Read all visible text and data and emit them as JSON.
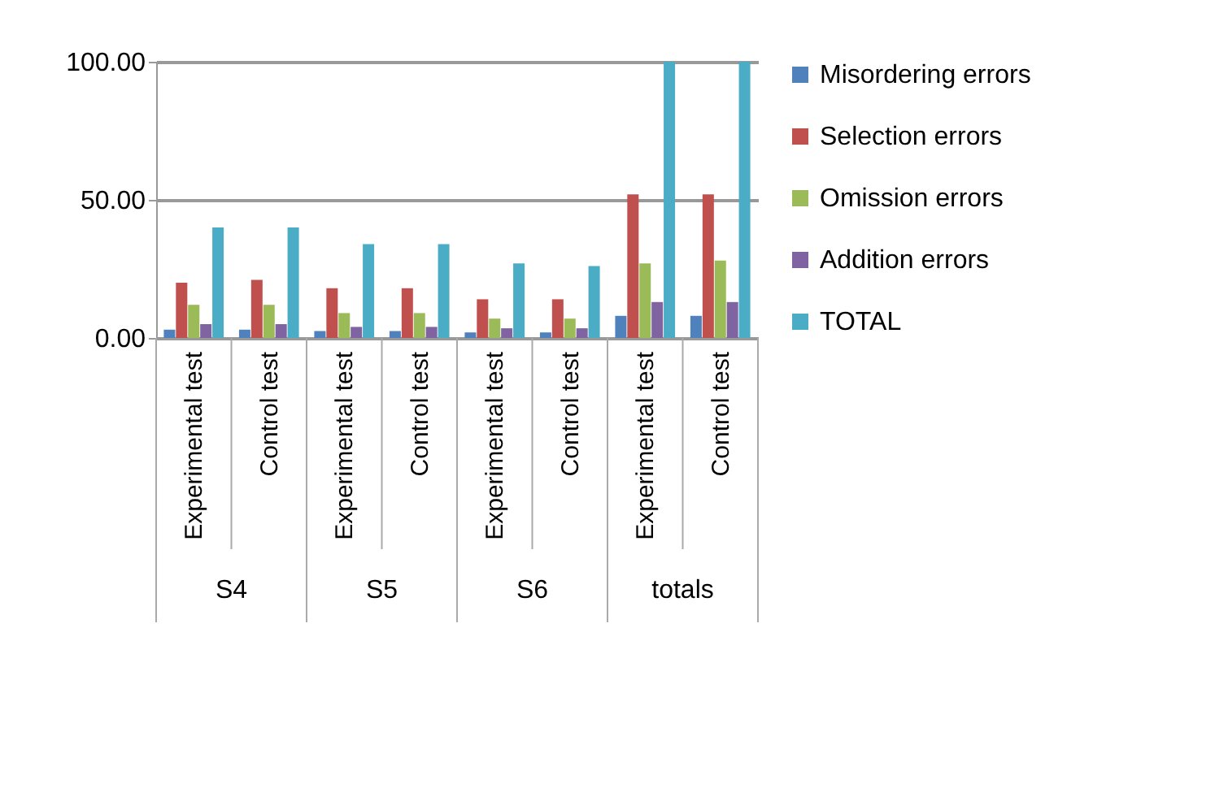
{
  "chart_data": {
    "type": "bar",
    "categories": [
      "Experimental test",
      "Control test",
      "Experimental test",
      "Control test",
      "Experimental test",
      "Control test",
      "Experimental test",
      "Control test"
    ],
    "annotations": [
      "S4",
      "S5",
      "S6",
      "totals"
    ],
    "series": [
      {
        "name": "Misordering errors",
        "color": "#4f81bd",
        "values": [
          3,
          3,
          2.5,
          2.5,
          2,
          2,
          8,
          8
        ]
      },
      {
        "name": "Selection errors",
        "color": "#c0504d",
        "values": [
          20,
          21,
          18,
          18,
          14,
          14,
          52,
          52
        ]
      },
      {
        "name": "Omission errors",
        "color": "#9bbb59",
        "values": [
          12,
          12,
          9,
          9,
          7,
          7,
          27,
          28
        ]
      },
      {
        "name": "Addition errors",
        "color": "#8064a2",
        "values": [
          5,
          5,
          4,
          4,
          3.5,
          3.5,
          13,
          13
        ]
      },
      {
        "name": "TOTAL",
        "color": "#4bacc6",
        "values": [
          40,
          40,
          34,
          34,
          27,
          26,
          100,
          100
        ]
      }
    ],
    "ylim": [
      0,
      100
    ],
    "yticks": [
      {
        "value": 0,
        "label": "0.00"
      },
      {
        "value": 50,
        "label": "50.00"
      },
      {
        "value": 100,
        "label": "100.00"
      }
    ],
    "grid": "y",
    "legend": "right"
  }
}
